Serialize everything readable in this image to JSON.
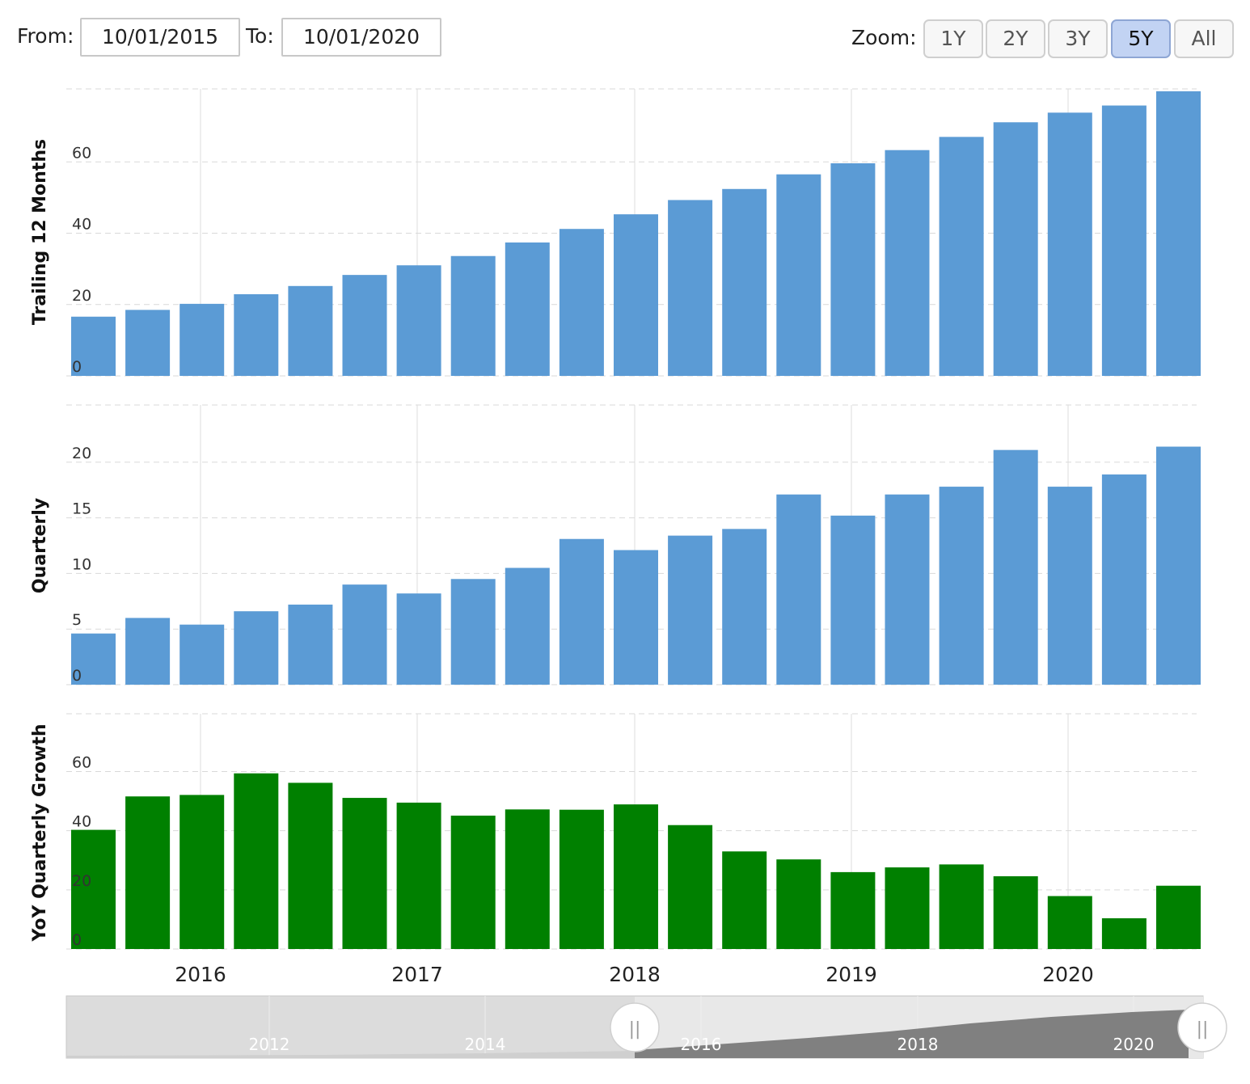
{
  "range": {
    "from_label": "From:",
    "from_value": "10/01/2015",
    "to_label": "To:",
    "to_value": "10/01/2020"
  },
  "zoom": {
    "label": "Zoom:",
    "options": [
      "1Y",
      "2Y",
      "3Y",
      "5Y",
      "All"
    ],
    "selected": "5Y"
  },
  "colors": {
    "blue_bar": "#5b9bd5",
    "green_bar": "#008000",
    "grid": "#d9d9d9",
    "navigator_bg": "#dcdcdc",
    "navigator_fill": "#808080"
  },
  "chart_data": [
    {
      "type": "bar",
      "ylabel": "Trailing 12 Months",
      "ylim": [
        0,
        80
      ],
      "yticks": [
        0,
        20,
        40,
        60
      ],
      "color": "#5b9bd5",
      "values": [
        16.6,
        18.5,
        20.2,
        22.9,
        25.2,
        28.3,
        31.0,
        33.6,
        37.4,
        41.2,
        45.3,
        49.3,
        52.4,
        56.5,
        59.6,
        63.3,
        67.0,
        71.1,
        73.8,
        75.8,
        79.8
      ]
    },
    {
      "type": "bar",
      "ylabel": "Quarterly",
      "ylim": [
        0,
        25
      ],
      "yticks": [
        0,
        5,
        10,
        15,
        20
      ],
      "color": "#5b9bd5",
      "values": [
        4.6,
        6.0,
        5.4,
        6.6,
        7.2,
        9.0,
        8.2,
        9.5,
        10.5,
        13.1,
        12.1,
        13.4,
        14.0,
        17.1,
        15.2,
        17.1,
        17.8,
        21.1,
        17.8,
        18.9,
        21.4
      ]
    },
    {
      "type": "bar",
      "ylabel": "YoY Quarterly Growth",
      "ylim": [
        0,
        79
      ],
      "yticks": [
        0,
        20,
        40,
        60
      ],
      "color": "#008000",
      "values": [
        40.3,
        51.6,
        52.1,
        59.4,
        56.2,
        51.1,
        49.5,
        45.1,
        47.2,
        47.1,
        48.9,
        41.9,
        33.0,
        30.3,
        26.0,
        27.6,
        28.6,
        24.6,
        17.9,
        10.4,
        21.4
      ]
    }
  ],
  "x_axis": {
    "tick_labels": [
      "2016",
      "2017",
      "2018",
      "2019",
      "2020"
    ]
  },
  "navigator": {
    "tick_labels": [
      "2012",
      "2014",
      "2016",
      "2018",
      "2020"
    ],
    "handle_glyph": "||"
  }
}
